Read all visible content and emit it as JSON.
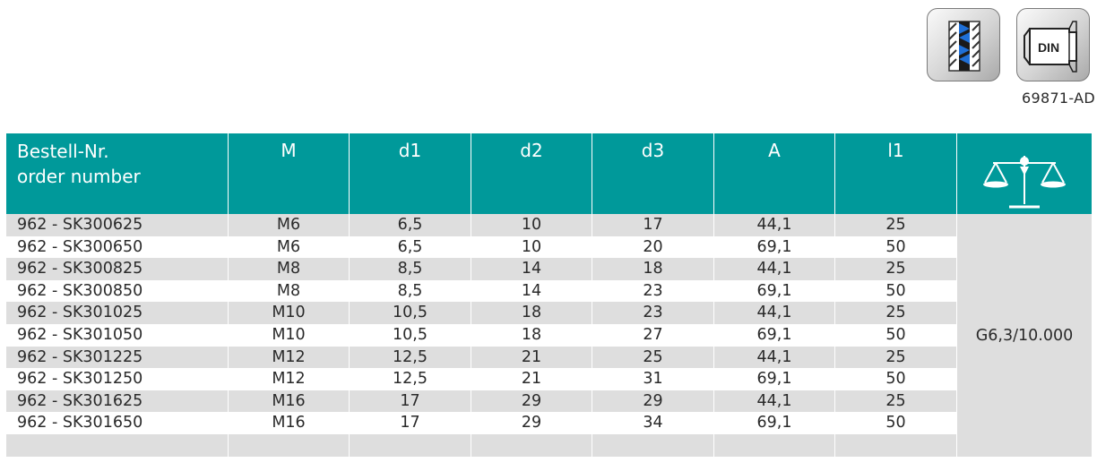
{
  "icons": {
    "thread_icon": "coarse-thread-icon",
    "din_icon": "din-standard-icon",
    "din_label": "DIN"
  },
  "reference_code": "69871-AD",
  "table": {
    "headers": {
      "order_number_line1": "Bestell-Nr.",
      "order_number_line2": "order number",
      "m": "M",
      "d1": "d1",
      "d2": "d2",
      "d3": "d3",
      "a": "A",
      "l1": "l1",
      "weight_icon": "balance-scale-icon"
    },
    "rows": [
      {
        "order": "962 - SK300625",
        "m": "M6",
        "d1": "6,5",
        "d2": "10",
        "d3": "17",
        "a": "44,1",
        "l1": "25"
      },
      {
        "order": "962 - SK300650",
        "m": "M6",
        "d1": "6,5",
        "d2": "10",
        "d3": "20",
        "a": "69,1",
        "l1": "50"
      },
      {
        "order": "962 - SK300825",
        "m": "M8",
        "d1": "8,5",
        "d2": "14",
        "d3": "18",
        "a": "44,1",
        "l1": "25"
      },
      {
        "order": "962 - SK300850",
        "m": "M8",
        "d1": "8,5",
        "d2": "14",
        "d3": "23",
        "a": "69,1",
        "l1": "50"
      },
      {
        "order": "962 - SK301025",
        "m": "M10",
        "d1": "10,5",
        "d2": "18",
        "d3": "23",
        "a": "44,1",
        "l1": "25"
      },
      {
        "order": "962 - SK301050",
        "m": "M10",
        "d1": "10,5",
        "d2": "18",
        "d3": "27",
        "a": "69,1",
        "l1": "50"
      },
      {
        "order": "962 - SK301225",
        "m": "M12",
        "d1": "12,5",
        "d2": "21",
        "d3": "25",
        "a": "44,1",
        "l1": "25"
      },
      {
        "order": "962 - SK301250",
        "m": "M12",
        "d1": "12,5",
        "d2": "21",
        "d3": "31",
        "a": "69,1",
        "l1": "50"
      },
      {
        "order": "962 - SK301625",
        "m": "M16",
        "d1": "17",
        "d2": "29",
        "d3": "29",
        "a": "44,1",
        "l1": "25"
      },
      {
        "order": "962 - SK301650",
        "m": "M16",
        "d1": "17",
        "d2": "29",
        "d3": "34",
        "a": "69,1",
        "l1": "50"
      }
    ],
    "balance_quality": "G6,3/10.000"
  },
  "colors": {
    "header_bg": "#00999a",
    "row_alt_bg": "#dedede"
  }
}
